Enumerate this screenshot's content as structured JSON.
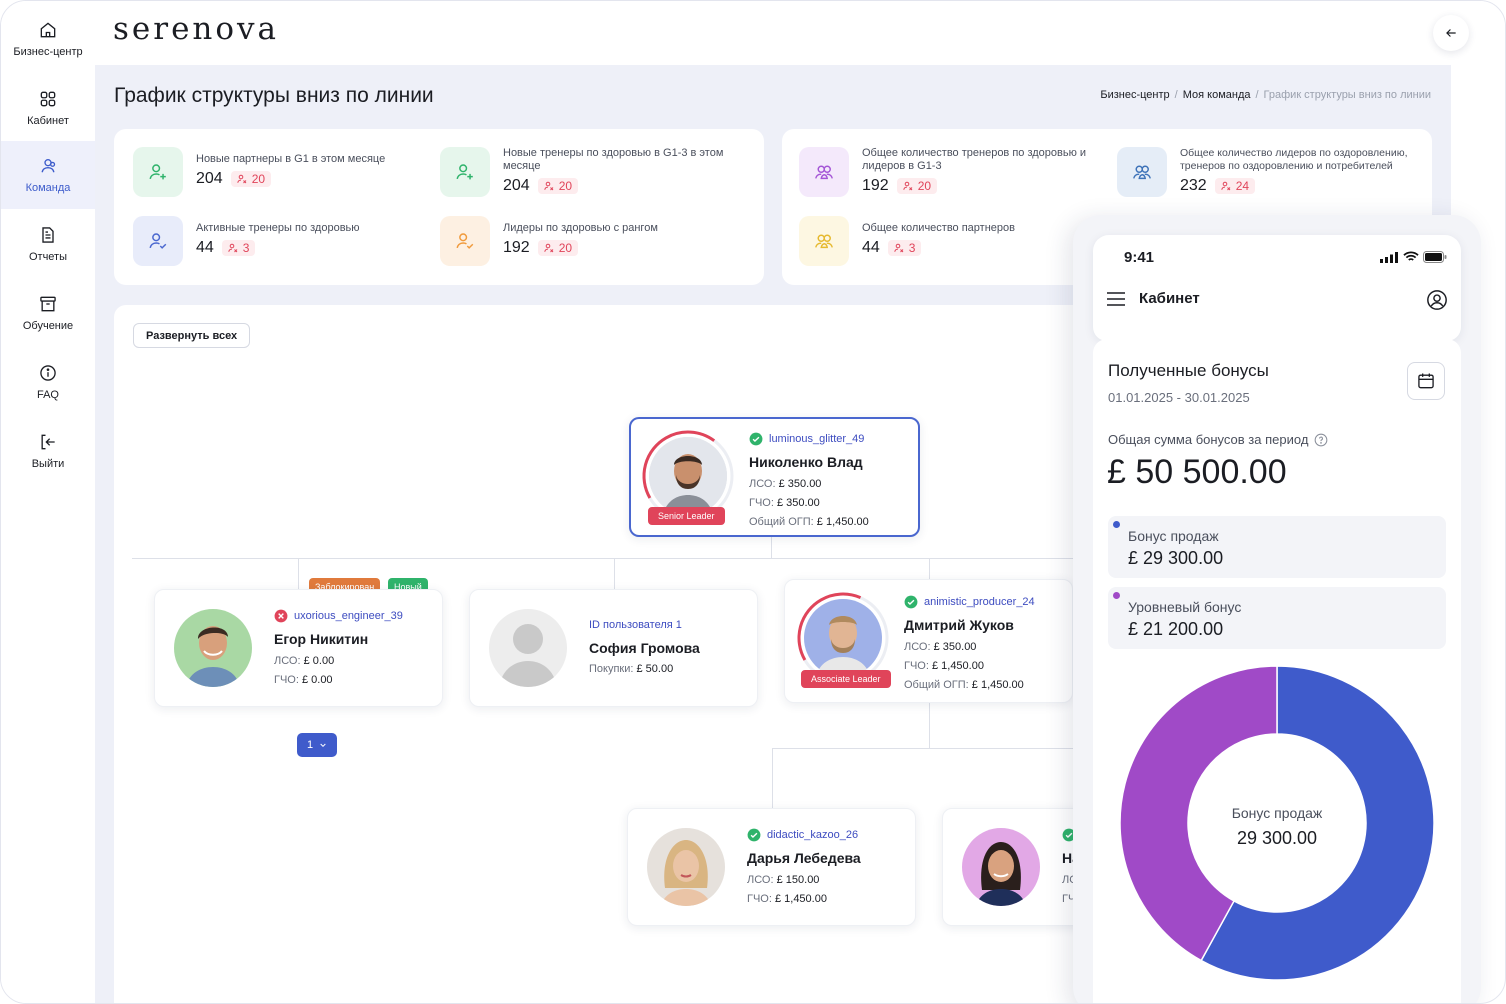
{
  "app": {
    "logo": "serenova"
  },
  "sidebar": {
    "items": [
      {
        "label": "Бизнес-центр",
        "icon": "home-icon"
      },
      {
        "label": "Кабинет",
        "icon": "grid-icon"
      },
      {
        "label": "Команда",
        "icon": "team-icon",
        "active": true
      },
      {
        "label": "Отчеты",
        "icon": "document-icon"
      },
      {
        "label": "Обучение",
        "icon": "archive-icon"
      },
      {
        "label": "FAQ",
        "icon": "info-icon"
      },
      {
        "label": "Выйти",
        "icon": "logout-icon"
      }
    ]
  },
  "header": {
    "back_icon": "arrow-left-icon"
  },
  "page": {
    "title": "График структуры вниз по линии",
    "breadcrumb": [
      "Бизнес-центр",
      "Моя команда",
      "График структуры вниз по линии"
    ]
  },
  "stats_left": [
    {
      "label": "Новые партнеры в G1 в этом месяце",
      "value": "204",
      "badge": "20",
      "color": "#2fb36b",
      "bg": "#e6f6ec"
    },
    {
      "label": "Новые тренеры по здоровью в G1-3 в этом месяце",
      "value": "204",
      "badge": "20",
      "color": "#2fb36b",
      "bg": "#e6f6ec"
    },
    {
      "label": "Активные тренеры по здоровью",
      "value": "44",
      "badge": "3",
      "color": "#4a67cf",
      "bg": "#e8ecfa"
    },
    {
      "label": "Лидеры по здоровью с рангом",
      "value": "192",
      "badge": "20",
      "color": "#f09a3c",
      "bg": "#fdf0e2"
    }
  ],
  "stats_right": [
    {
      "label": "Общее количество тренеров по здоровью и лидеров в G1-3",
      "value": "192",
      "badge": "20",
      "color": "#a455d6",
      "bg": "#f4e9fb"
    },
    {
      "label": "Общее количество лидеров по оздоровлению, тренеров по оздоровлению и потребителей",
      "value": "232",
      "badge": "24",
      "color": "#3d72b8",
      "bg": "#e5edf7"
    },
    {
      "label": "Общее количество партнеров",
      "value": "44",
      "badge": "3",
      "color": "#e6b92e",
      "bg": "#fdf7e2"
    }
  ],
  "tree": {
    "expand_label": "Развернуть всех",
    "labels": {
      "lso": "ЛСО:",
      "gcho": "ГЧО:",
      "ogp": "Общий ОГП:",
      "purchases": "Покупки:"
    },
    "root": {
      "username": "luminous_glitter_49",
      "name": "Николенко Влад",
      "lso": "£ 350.00",
      "gcho": "£ 350.00",
      "ogp": "£ 1,450.00",
      "rank": "Senior Leader",
      "status": "verified"
    },
    "level1": [
      {
        "username": "uxorious_engineer_39",
        "name": "Егор Никитин",
        "lso": "£ 0.00",
        "gcho": "£ 0.00",
        "status": "blocked",
        "tags": [
          "Заблокирован",
          "Новый"
        ]
      },
      {
        "username": "ID пользователя 1",
        "name": "София Громова",
        "purchases": "£ 50.00"
      },
      {
        "username": "animistic_producer_24",
        "name": "Дмитрий Жуков",
        "lso": "£ 350.00",
        "gcho": "£ 1,450.00",
        "ogp": "£ 1,450.00",
        "rank": "Associate Leader",
        "status": "verified"
      }
    ],
    "level2": [
      {
        "username": "didactic_kazoo_26",
        "name": "Дарья Лебедева",
        "lso": "£ 150.00",
        "gcho": "£ 1,450.00",
        "status": "verified"
      },
      {
        "name_partial": "На",
        "lso_partial": "ЛС",
        "gcho_partial": "ГЧ"
      }
    ],
    "pager": "1"
  },
  "phone": {
    "time": "9:41",
    "title": "Кабинет",
    "bonus_title": "Полученные бонусы",
    "period": "01.01.2025 - 30.01.2025",
    "total_label": "Общая сумма бонусов за период",
    "total_value": "£ 50 500.00",
    "bonuses": [
      {
        "label": "Бонус продаж",
        "value": "£ 29 300.00",
        "color": "#3f5bcb"
      },
      {
        "label": "Уровневый бонус",
        "value": "£ 21 200.00",
        "color": "#a04ac7"
      }
    ],
    "donut_center": {
      "label": "Бонус продаж",
      "value": "29 300.00"
    }
  },
  "chart_data": {
    "type": "pie",
    "categories": [
      "Бонус продаж",
      "Уровневый бонус"
    ],
    "values": [
      29300,
      21200
    ],
    "colors": [
      "#3f5bcb",
      "#a04ac7"
    ],
    "center_label": "Бонус продаж",
    "center_value": "29 300.00"
  }
}
